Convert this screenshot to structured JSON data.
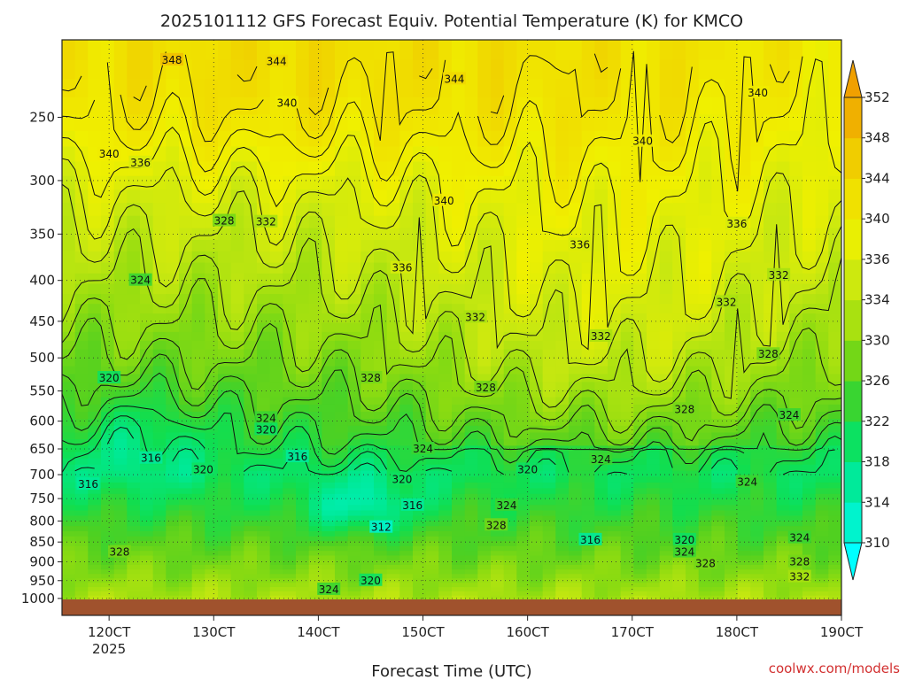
{
  "title": "2025101112 GFS Forecast Equiv. Potential Temperature (K) for KMCO",
  "credit": "coolwx.com/models",
  "colors": {
    "ground": "#a0522d",
    "contour": "#111111",
    "gridline": "#333333",
    "colorbar": [
      "#00ffff",
      "#00f2c8",
      "#00e890",
      "#10de50",
      "#50d020",
      "#90dc10",
      "#c8e810",
      "#f0f000",
      "#f0dc00",
      "#f0c400",
      "#f0a000"
    ]
  },
  "chart_data": {
    "type": "heatmap",
    "title": "2025101112 GFS Forecast Equiv. Potential Temperature (K) for KMCO",
    "xlabel": "Forecast Time (UTC)",
    "ylabel": "",
    "x_ticks": [
      "120CT",
      "130CT",
      "140CT",
      "150CT",
      "160CT",
      "170CT",
      "180CT",
      "190CT"
    ],
    "x_sublabel": "2025",
    "y_ticks": [
      250,
      300,
      350,
      400,
      450,
      500,
      550,
      600,
      650,
      700,
      750,
      800,
      850,
      900,
      950,
      1000
    ],
    "y_scale": "log-pressure",
    "colorbar": {
      "levels": [
        310,
        314,
        318,
        322,
        326,
        330,
        334,
        336,
        340,
        344,
        348,
        352
      ],
      "labels": [
        310,
        314,
        318,
        322,
        326,
        330,
        334,
        336,
        340,
        344,
        348,
        352
      ],
      "range": [
        306,
        354
      ]
    },
    "grid": true,
    "contour_labels": [
      {
        "v": 348,
        "d": 12.6,
        "p": 212
      },
      {
        "v": 344,
        "d": 11.2,
        "p": 229
      },
      {
        "v": 344,
        "d": 13.6,
        "p": 213
      },
      {
        "v": 344,
        "d": 15.3,
        "p": 224
      },
      {
        "v": 340,
        "d": 13.7,
        "p": 240
      },
      {
        "v": 340,
        "d": 12.0,
        "p": 278
      },
      {
        "v": 336,
        "d": 12.3,
        "p": 285
      },
      {
        "v": 340,
        "d": 15.2,
        "p": 318
      },
      {
        "v": 340,
        "d": 17.1,
        "p": 268
      },
      {
        "v": 340,
        "d": 18.2,
        "p": 233
      },
      {
        "v": 328,
        "d": 13.1,
        "p": 337
      },
      {
        "v": 332,
        "d": 13.5,
        "p": 338
      },
      {
        "v": 336,
        "d": 11.2,
        "p": 342
      },
      {
        "v": 332,
        "d": 11.4,
        "p": 352
      },
      {
        "v": 336,
        "d": 16.5,
        "p": 361
      },
      {
        "v": 336,
        "d": 14.8,
        "p": 386
      },
      {
        "v": 336,
        "d": 18.0,
        "p": 340
      },
      {
        "v": 332,
        "d": 18.4,
        "p": 394
      },
      {
        "v": 324,
        "d": 12.3,
        "p": 400
      },
      {
        "v": 332,
        "d": 17.9,
        "p": 426
      },
      {
        "v": 332,
        "d": 15.5,
        "p": 445
      },
      {
        "v": 332,
        "d": 16.7,
        "p": 470
      },
      {
        "v": 328,
        "d": 18.3,
        "p": 495
      },
      {
        "v": 320,
        "d": 12.0,
        "p": 530
      },
      {
        "v": 328,
        "d": 14.5,
        "p": 530
      },
      {
        "v": 328,
        "d": 15.6,
        "p": 545
      },
      {
        "v": 328,
        "d": 17.5,
        "p": 580
      },
      {
        "v": 324,
        "d": 18.5,
        "p": 590
      },
      {
        "v": 324,
        "d": 13.5,
        "p": 595
      },
      {
        "v": 320,
        "d": 13.5,
        "p": 615
      },
      {
        "v": 320,
        "d": 11.2,
        "p": 630
      },
      {
        "v": 324,
        "d": 15.0,
        "p": 650
      },
      {
        "v": 316,
        "d": 12.4,
        "p": 668
      },
      {
        "v": 316,
        "d": 13.8,
        "p": 665
      },
      {
        "v": 320,
        "d": 12.9,
        "p": 690
      },
      {
        "v": 320,
        "d": 16.0,
        "p": 690
      },
      {
        "v": 324,
        "d": 16.7,
        "p": 670
      },
      {
        "v": 320,
        "d": 14.8,
        "p": 710
      },
      {
        "v": 316,
        "d": 11.8,
        "p": 720
      },
      {
        "v": 324,
        "d": 18.1,
        "p": 715
      },
      {
        "v": 316,
        "d": 14.9,
        "p": 765
      },
      {
        "v": 324,
        "d": 15.8,
        "p": 765
      },
      {
        "v": 324,
        "d": 11.2,
        "p": 795
      },
      {
        "v": 312,
        "d": 14.6,
        "p": 815
      },
      {
        "v": 328,
        "d": 15.7,
        "p": 810
      },
      {
        "v": 316,
        "d": 16.6,
        "p": 845
      },
      {
        "v": 320,
        "d": 17.5,
        "p": 845
      },
      {
        "v": 324,
        "d": 18.6,
        "p": 840
      },
      {
        "v": 328,
        "d": 12.1,
        "p": 875
      },
      {
        "v": 324,
        "d": 17.5,
        "p": 875
      },
      {
        "v": 328,
        "d": 17.7,
        "p": 905
      },
      {
        "v": 328,
        "d": 18.6,
        "p": 900
      },
      {
        "v": 332,
        "d": 11.0,
        "p": 910
      },
      {
        "v": 332,
        "d": 18.6,
        "p": 940
      },
      {
        "v": 320,
        "d": 14.5,
        "p": 950
      },
      {
        "v": 324,
        "d": 14.1,
        "p": 975
      }
    ]
  }
}
